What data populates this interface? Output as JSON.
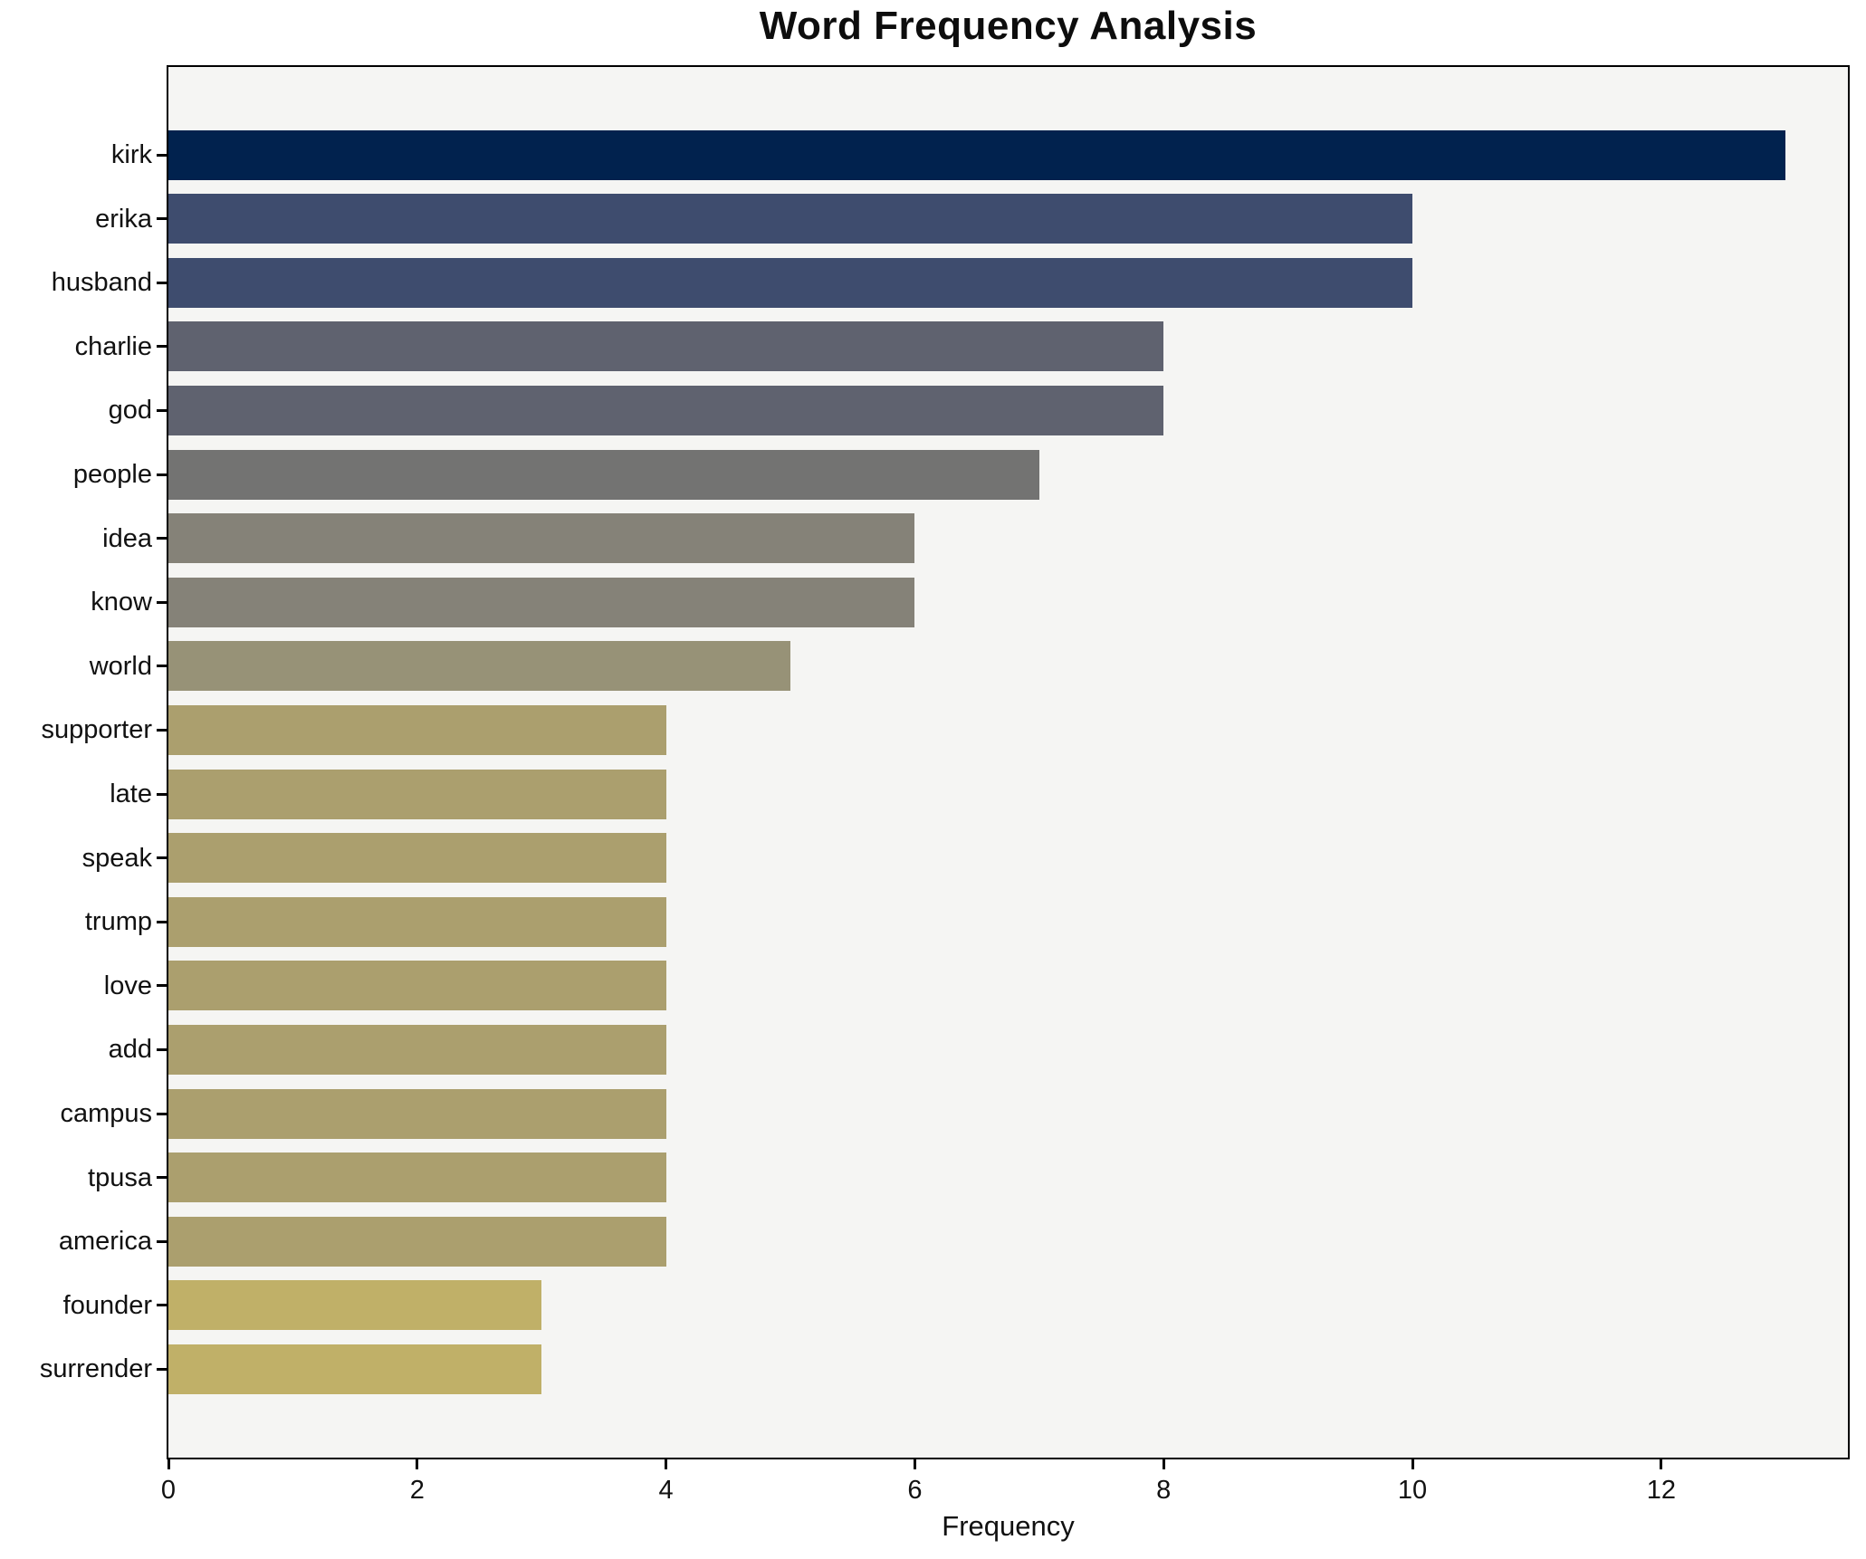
{
  "chart_data": {
    "type": "bar",
    "orientation": "horizontal",
    "title": "Word Frequency Analysis",
    "xlabel": "Frequency",
    "ylabel": "",
    "categories": [
      "kirk",
      "erika",
      "husband",
      "charlie",
      "god",
      "people",
      "idea",
      "know",
      "world",
      "supporter",
      "late",
      "speak",
      "trump",
      "love",
      "add",
      "campus",
      "tpusa",
      "america",
      "founder",
      "surrender"
    ],
    "values": [
      13,
      10,
      10,
      8,
      8,
      7,
      6,
      6,
      5,
      4,
      4,
      4,
      4,
      4,
      4,
      4,
      4,
      4,
      3,
      3
    ],
    "bar_colors": [
      "#01224e",
      "#3e4c6e",
      "#3e4c6e",
      "#5f626f",
      "#5f626f",
      "#737372",
      "#858278",
      "#858278",
      "#979277",
      "#ab9f6e",
      "#ab9f6e",
      "#ab9f6e",
      "#ab9f6e",
      "#ab9f6e",
      "#ab9f6e",
      "#ab9f6e",
      "#ab9f6e",
      "#ab9f6e",
      "#c0b068",
      "#c0b068"
    ],
    "xticks": [
      0,
      2,
      4,
      6,
      8,
      10,
      12
    ],
    "xlim": [
      0,
      13.5
    ],
    "grid": false,
    "legend": null,
    "plot_background": "#f5f5f3",
    "spine_color": "#000000"
  }
}
